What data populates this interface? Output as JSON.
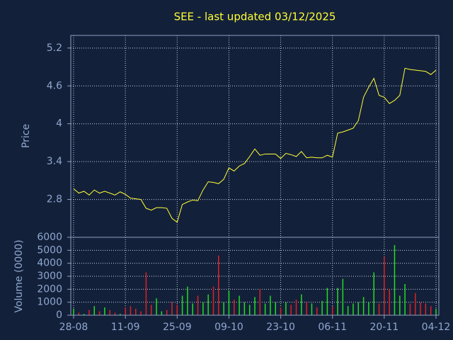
{
  "chart_data": [
    {
      "type": "line",
      "title": "SEE - last updated 03/12/2025",
      "ylabel": "Price",
      "categories": [
        "28-08",
        null,
        null,
        null,
        null,
        null,
        null,
        null,
        null,
        null,
        "11-09",
        null,
        null,
        null,
        null,
        null,
        null,
        null,
        null,
        null,
        "25-09",
        null,
        null,
        null,
        null,
        null,
        null,
        null,
        null,
        null,
        "09-10",
        null,
        null,
        null,
        null,
        null,
        null,
        null,
        null,
        null,
        "23-10",
        null,
        null,
        null,
        null,
        null,
        null,
        null,
        null,
        null,
        "06-11",
        null,
        null,
        null,
        null,
        null,
        null,
        null,
        null,
        null,
        "20-11",
        null,
        null,
        null,
        null,
        null,
        null,
        null,
        null,
        null,
        "04-12"
      ],
      "series": [
        {
          "name": "SEE",
          "color": "#ffff33",
          "values": [
            2.97,
            2.9,
            2.93,
            2.87,
            2.95,
            2.9,
            2.93,
            2.9,
            2.87,
            2.92,
            2.88,
            2.82,
            2.81,
            2.8,
            2.66,
            2.63,
            2.67,
            2.67,
            2.66,
            2.5,
            2.44,
            2.72,
            2.76,
            2.79,
            2.78,
            2.95,
            3.08,
            3.07,
            3.05,
            3.12,
            3.3,
            3.25,
            3.33,
            3.37,
            3.48,
            3.6,
            3.5,
            3.52,
            3.52,
            3.52,
            3.45,
            3.53,
            3.51,
            3.48,
            3.56,
            3.46,
            3.47,
            3.46,
            3.46,
            3.5,
            3.47,
            3.85,
            3.87,
            3.9,
            3.93,
            4.05,
            4.42,
            4.58,
            4.72,
            4.45,
            4.42,
            4.32,
            4.37,
            4.45,
            4.88,
            4.86,
            4.85,
            4.84,
            4.83,
            4.78,
            4.85
          ]
        }
      ],
      "ylim": [
        2.2,
        5.4
      ],
      "yticks": [
        2.8,
        3.4,
        4,
        4.6,
        5.2
      ],
      "grid": true
    },
    {
      "type": "bar",
      "ylabel": "Volume (0000)",
      "up_color": "#22dd22",
      "down_color": "#dd2222",
      "values": [
        500,
        200,
        100,
        400,
        700,
        300,
        600,
        400,
        200,
        100,
        600,
        700,
        500,
        300,
        3300,
        800,
        1300,
        300,
        400,
        1000,
        800,
        1500,
        2200,
        900,
        1500,
        1000,
        1600,
        2200,
        4600,
        1000,
        1900,
        1200,
        1500,
        1000,
        800,
        1400,
        2000,
        900,
        1500,
        1000,
        600,
        1000,
        800,
        1200,
        1600,
        1000,
        900,
        600,
        1100,
        2100,
        700,
        2100,
        2800,
        700,
        900,
        1000,
        1400,
        1000,
        3300,
        900,
        4500,
        2000,
        5400,
        1500,
        2400,
        900,
        1700,
        1000,
        900,
        700,
        500
      ],
      "ylim": [
        0,
        6000
      ],
      "yticks": [
        0,
        1000,
        2000,
        3000,
        4000,
        5000,
        6000
      ],
      "grid": true
    }
  ]
}
